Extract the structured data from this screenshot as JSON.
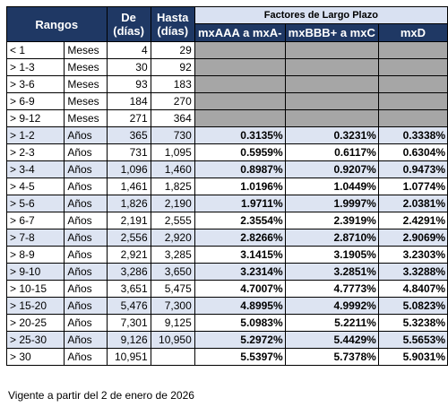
{
  "header": {
    "rangos": "Rangos",
    "de": "De",
    "de_unit": "(días)",
    "hasta": "Hasta",
    "hasta_unit": "(días)",
    "factores": "Factores de Largo Plazo",
    "col_a": "mxAAA a mxA-",
    "col_b": "mxBBB+ a mxC",
    "col_c": "mxD"
  },
  "rows": [
    {
      "rango": "< 1",
      "unidad": "Meses",
      "de": "4",
      "hasta": "29",
      "a": "",
      "b": "",
      "c": ""
    },
    {
      "rango": "> 1-3",
      "unidad": "Meses",
      "de": "30",
      "hasta": "92",
      "a": "",
      "b": "",
      "c": ""
    },
    {
      "rango": "> 3-6",
      "unidad": "Meses",
      "de": "93",
      "hasta": "183",
      "a": "",
      "b": "",
      "c": ""
    },
    {
      "rango": "> 6-9",
      "unidad": "Meses",
      "de": "184",
      "hasta": "270",
      "a": "",
      "b": "",
      "c": ""
    },
    {
      "rango": "> 9-12",
      "unidad": "Meses",
      "de": "271",
      "hasta": "364",
      "a": "",
      "b": "",
      "c": ""
    },
    {
      "rango": "> 1-2",
      "unidad": "Años",
      "de": "365",
      "hasta": "730",
      "a": "0.3135%",
      "b": "0.3231%",
      "c": "0.3338%"
    },
    {
      "rango": "> 2-3",
      "unidad": "Años",
      "de": "731",
      "hasta": "1,095",
      "a": "0.5959%",
      "b": "0.6117%",
      "c": "0.6304%"
    },
    {
      "rango": "> 3-4",
      "unidad": "Años",
      "de": "1,096",
      "hasta": "1,460",
      "a": "0.8987%",
      "b": "0.9207%",
      "c": "0.9473%"
    },
    {
      "rango": "> 4-5",
      "unidad": "Años",
      "de": "1,461",
      "hasta": "1,825",
      "a": "1.0196%",
      "b": "1.0449%",
      "c": "1.0774%"
    },
    {
      "rango": "> 5-6",
      "unidad": "Años",
      "de": "1,826",
      "hasta": "2,190",
      "a": "1.9711%",
      "b": "1.9997%",
      "c": "2.0381%"
    },
    {
      "rango": "> 6-7",
      "unidad": "Años",
      "de": "2,191",
      "hasta": "2,555",
      "a": "2.3554%",
      "b": "2.3919%",
      "c": "2.4291%"
    },
    {
      "rango": "> 7-8",
      "unidad": "Años",
      "de": "2,556",
      "hasta": "2,920",
      "a": "2.8266%",
      "b": "2.8710%",
      "c": "2.9069%"
    },
    {
      "rango": "> 8-9",
      "unidad": "Años",
      "de": "2,921",
      "hasta": "3,285",
      "a": "3.1415%",
      "b": "3.1905%",
      "c": "3.2303%"
    },
    {
      "rango": "> 9-10",
      "unidad": "Años",
      "de": "3,286",
      "hasta": "3,650",
      "a": "3.2314%",
      "b": "3.2851%",
      "c": "3.3288%"
    },
    {
      "rango": "> 10-15",
      "unidad": "Años",
      "de": "3,651",
      "hasta": "5,475",
      "a": "4.7007%",
      "b": "4.7773%",
      "c": "4.8407%"
    },
    {
      "rango": "> 15-20",
      "unidad": "Años",
      "de": "5,476",
      "hasta": "7,300",
      "a": "4.8995%",
      "b": "4.9992%",
      "c": "5.0823%"
    },
    {
      "rango": "> 20-25",
      "unidad": "Años",
      "de": "7,301",
      "hasta": "9,125",
      "a": "5.0983%",
      "b": "5.2211%",
      "c": "5.3238%"
    },
    {
      "rango": "> 25-30",
      "unidad": "Años",
      "de": "9,126",
      "hasta": "10,950",
      "a": "5.2972%",
      "b": "5.4429%",
      "c": "5.5653%"
    },
    {
      "rango": "> 30",
      "unidad": "Años",
      "de": "10,951",
      "hasta": "",
      "a": "5.5397%",
      "b": "5.7378%",
      "c": "5.9031%"
    }
  ],
  "footnote": "Vigente a partir del 2 de enero de 2026",
  "colors": {
    "header_bg": "#1f3864",
    "subheader_bg": "#d9e1f2",
    "row_alt_bg": "#dde4f2",
    "empty_cell_bg": "#a6a6a6"
  }
}
